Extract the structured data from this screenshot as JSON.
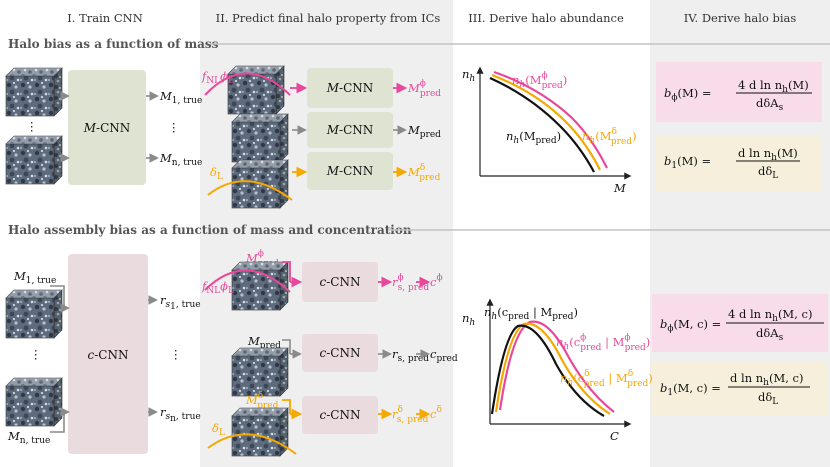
{
  "columns": {
    "c1": "I.  Train CNN",
    "c2": "II.  Predict final halo property from ICs",
    "c3": "III.  Derive halo abundance",
    "c4": "IV.  Derive halo bias"
  },
  "sections": {
    "top": "Halo bias as a function of mass",
    "bottom": "Halo assembly bias as a function of mass and concentration"
  },
  "top": {
    "cnn_label": "M-CNN",
    "mass_1": "M",
    "mass_1_sub": "1, true",
    "mass_n": "M",
    "mass_n_sub": "n, true",
    "dots": "⋮",
    "row_fnl": "f",
    "row_fnl_sub": "NL",
    "row_phi": "ϕ",
    "row_phi_sub": "L",
    "row_delta": "δ",
    "row_delta_sub": "L",
    "out_phi": "M",
    "out_phi_sup": "ϕ",
    "out_phi_sub": "pred",
    "out_mid": "M",
    "out_mid_sub": "pred",
    "out_delta": "M",
    "out_delta_sup": "δ",
    "out_delta_sub": "pred",
    "plot": {
      "ylabel": "n",
      "ylabel_sub": "h",
      "xlabel": "M",
      "lbl_phi": "n",
      "lbl_phi_rest": "(M",
      "lbl_phi_sup": "ϕ",
      "lbl_phi_sub": "pred",
      "lbl_mid": "n",
      "lbl_mid_rest": "(M",
      "lbl_mid_sub": "pred",
      "lbl_delta": "n",
      "lbl_delta_rest": "(M",
      "lbl_delta_sup": "δ",
      "lbl_delta_sub": "pred",
      "h": "h",
      "close": ")"
    },
    "eq1_lhs": "b",
    "eq1_lhs_sub": "ϕ",
    "eq1_lhs_rest": "(M) =",
    "eq1_num": "4 d ln n",
    "eq1_num_sub": "h",
    "eq1_num_rest": "(M)",
    "eq1_den": "dδA",
    "eq1_den_sub": "s",
    "eq2_lhs": "b",
    "eq2_lhs_sub": "1",
    "eq2_lhs_rest": "(M) =",
    "eq2_num": "d ln n",
    "eq2_num_sub": "h",
    "eq2_num_rest": "(M)",
    "eq2_den": "dδ",
    "eq2_den_sub": "L"
  },
  "bottom": {
    "cnn_label": "c-CNN",
    "mass_1": "M",
    "mass_1_sub": "1, true",
    "mass_n": "M",
    "mass_n_sub": "n, true",
    "dots": "⋮",
    "rs1": "r",
    "rs1_sub": "s",
    "rs1_subsub": "1",
    "rs1_tail": ", true",
    "rsn": "r",
    "rsn_sub": "s",
    "rsn_subsub": "n",
    "rsn_tail": ", true",
    "in_phi": "M",
    "in_phi_sup": "ϕ",
    "in_phi_sub": "pred",
    "in_mid": "M",
    "in_mid_sub": "pred",
    "in_delta": "M",
    "in_delta_sup": "δ",
    "in_delta_sub": "pred",
    "row_fnl": "f",
    "row_fnl_sub": "NL",
    "row_phi": "ϕ",
    "row_phi_sub": "L",
    "row_delta": "δ",
    "row_delta_sub": "L",
    "r_phi": "r",
    "r_phi_sup": "ϕ",
    "r_phi_sub": "s, pred",
    "c_phi": "c",
    "c_phi_sup": "ϕ",
    "r_mid": "r",
    "r_mid_sub": "s, pred",
    "c_mid": "c",
    "c_mid_sub": "pred",
    "r_delta": "r",
    "r_delta_sup": "δ",
    "r_delta_sub": "s, pred",
    "c_delta": "c",
    "c_delta_sup": "δ",
    "plot": {
      "ylabel": "n",
      "ylabel_sub": "h",
      "xlabel": "C",
      "lbl_mid": "n",
      "h": "h",
      "lbl_mid_a": "(c",
      "lbl_mid_sub": "pred",
      "lbl_mid_b": " | M",
      "lbl_mid_sub2": "pred",
      "close": ")",
      "lbl_phi": "n",
      "lbl_phi_a": "(c",
      "lbl_phi_sup": "ϕ",
      "lbl_phi_sub": "pred",
      "lbl_phi_b": " | M",
      "lbl_phi_sup2": "ϕ",
      "lbl_phi_sub2": "pred",
      "lbl_delta": "n",
      "lbl_delta_a": "(c",
      "lbl_delta_sup": "δ",
      "lbl_delta_sub": "pred",
      "lbl_delta_b": " | M",
      "lbl_delta_sup2": "δ",
      "lbl_delta_sub2": "pred"
    },
    "eq1_lhs": "b",
    "eq1_lhs_sub": "ϕ",
    "eq1_lhs_rest": "(M, c) =",
    "eq1_num": "4 d ln n",
    "eq1_num_sub": "h",
    "eq1_num_rest": "(M, c)",
    "eq1_den": "dδA",
    "eq1_den_sub": "s",
    "eq2_lhs": "b",
    "eq2_lhs_sub": "1",
    "eq2_lhs_rest": "(M, c) =",
    "eq2_num": "d ln n",
    "eq2_num_sub": "h",
    "eq2_num_rest": "(M, c)",
    "eq2_den": "dδ",
    "eq2_den_sub": "L"
  },
  "colors": {
    "pink": "#e8489a",
    "orange": "#f5a800",
    "arrow_gray": "#8a8a8a",
    "col_bg": "#efefef",
    "mcnn_box": "#dfe3d2",
    "ccnn_box": "#eadcde",
    "eq_pink": "#f8dcea",
    "eq_cream": "#f6efdc"
  }
}
